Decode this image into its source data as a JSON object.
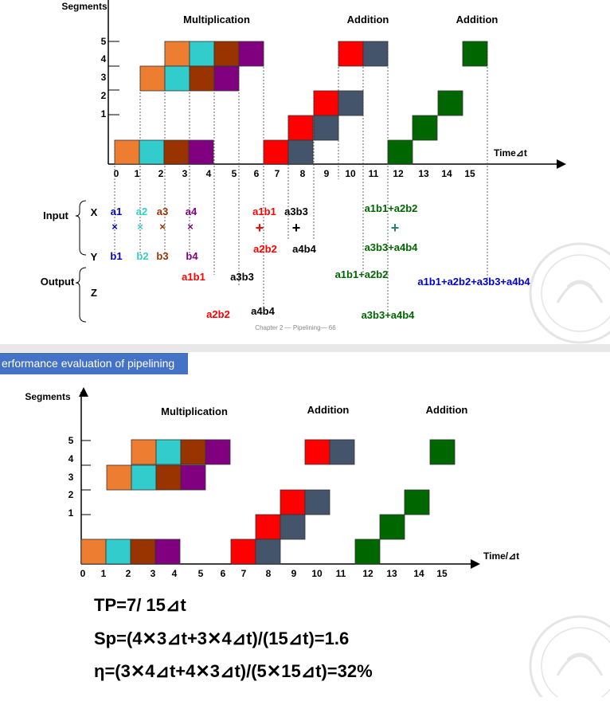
{
  "section_header": "erformance evaluation of pipelining",
  "footer_caption": "Chapter 2 — Pipelining— 66",
  "colors": {
    "orange": "#ed7d31",
    "cyan": "#33cccc",
    "brown": "#993300",
    "purple": "#800080",
    "red": "#ff0000",
    "slate": "#44546a",
    "green": "#006600",
    "header_blue": "#4472c4"
  },
  "diagram_top": {
    "y_title": "Segments",
    "x_title": "Time⊿t",
    "section_labels": [
      "Multiplication",
      "Addition",
      "Addition"
    ],
    "y_ticks": [
      "5",
      "4",
      "3",
      "2",
      "1"
    ],
    "x_ticks": [
      "0",
      "1",
      "2",
      "3",
      "4",
      "5",
      "6",
      "7",
      "8",
      "9",
      "10",
      "11",
      "12",
      "13",
      "14",
      "15"
    ],
    "io_labels": {
      "input": "Input",
      "output": "Output",
      "x": "X",
      "y": "Y",
      "z": "Z"
    },
    "x_inputs": [
      "a1",
      "a2",
      "a3",
      "a4",
      "a1b1",
      "a3b3",
      "a1b1+a2b2"
    ],
    "y_inputs": [
      "b1",
      "b2",
      "b3",
      "b4",
      "a2b2",
      "a4b4",
      "a3b3+a4b4"
    ],
    "operators": [
      "×",
      "×",
      "×",
      "×",
      "+",
      "+",
      "+"
    ],
    "outputs": [
      "a1b1",
      "a3b3",
      "a2b2",
      "a4b4",
      "a1b1+a2b2",
      "a3b3+a4b4",
      "a1b1+a2b2+a3b3+a4b4"
    ]
  },
  "diagram_bottom": {
    "y_title": "Segments",
    "x_title": "Time/⊿t",
    "section_labels": [
      "Multiplication",
      "Addition",
      "Addition"
    ],
    "y_ticks": [
      "5",
      "4",
      "3",
      "2",
      "1"
    ],
    "x_ticks": [
      "0",
      "1",
      "2",
      "3",
      "4",
      "5",
      "6",
      "7",
      "8",
      "9",
      "10",
      "11",
      "12",
      "13",
      "14",
      "15"
    ]
  },
  "formulas": {
    "tp": "TP=7/ 15⊿t",
    "sp": "Sp=(4✕3⊿t+3✕4⊿t)/(15⊿t)=1.6",
    "eta": "η=(3✕4⊿t+4✕3⊿t)/(5✕15⊿t)=32%"
  }
}
